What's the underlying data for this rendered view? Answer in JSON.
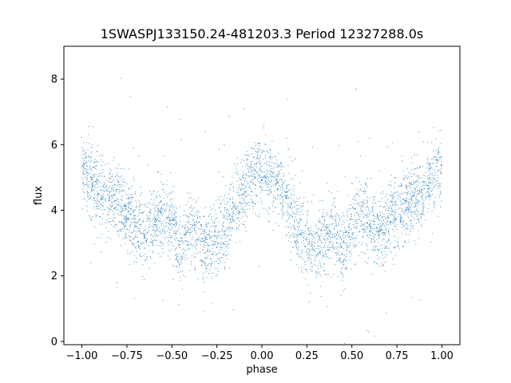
{
  "chart_data": {
    "type": "scatter",
    "title": "1SWASPJ133150.24-481203.3 Period 12327288.0s",
    "xlabel": "phase",
    "ylabel": "flux",
    "xlim": [
      -1.1,
      1.1
    ],
    "ylim": [
      -0.1,
      9.0
    ],
    "xticks": [
      -1.0,
      -0.75,
      -0.5,
      -0.25,
      0.0,
      0.25,
      0.5,
      0.75,
      1.0
    ],
    "xtick_labels": [
      "−1.00",
      "−0.75",
      "−0.50",
      "−0.25",
      "0.00",
      "0.25",
      "0.50",
      "0.75",
      "1.00"
    ],
    "yticks": [
      0,
      2,
      4,
      6,
      8
    ],
    "ytick_labels": [
      "0",
      "2",
      "4",
      "6",
      "8"
    ],
    "grid": false,
    "marker_color": "#1f77b4",
    "series": [
      {
        "profile_x": [
          0.0,
          0.05,
          0.1,
          0.15,
          0.2,
          0.25,
          0.3,
          0.35,
          0.4,
          0.45,
          0.5,
          0.55,
          0.6,
          0.65,
          0.7,
          0.75,
          0.8,
          0.85,
          0.9,
          0.95,
          1.0
        ],
        "profile_y": [
          5.3,
          5.0,
          4.6,
          4.1,
          3.4,
          3.1,
          2.8,
          3.2,
          3.5,
          2.7,
          3.6,
          3.9,
          3.6,
          3.3,
          3.6,
          3.9,
          4.2,
          4.3,
          4.6,
          5.0,
          5.3
        ],
        "scatter_spread": 0.55
      }
    ]
  }
}
